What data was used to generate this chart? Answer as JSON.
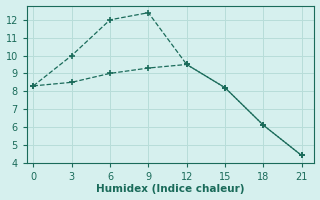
{
  "line1_x": [
    0,
    3,
    6,
    9,
    12,
    15,
    18,
    21
  ],
  "line1_y": [
    8.3,
    10.0,
    12.0,
    12.4,
    9.5,
    8.2,
    6.1,
    4.4
  ],
  "line2_x": [
    0,
    3,
    6,
    9,
    12,
    15,
    18,
    21
  ],
  "line2_y": [
    8.3,
    8.5,
    9.0,
    9.3,
    9.5,
    8.2,
    6.1,
    4.4
  ],
  "line_color": "#1a6b5a",
  "bg_color": "#d6f0ee",
  "grid_color": "#b8ddd9",
  "xlabel": "Humidex (Indice chaleur)",
  "xlim": [
    -0.5,
    22
  ],
  "ylim": [
    4,
    12.8
  ],
  "xticks": [
    0,
    3,
    6,
    9,
    12,
    15,
    18,
    21
  ],
  "yticks": [
    4,
    5,
    6,
    7,
    8,
    9,
    10,
    11,
    12
  ],
  "tick_fontsize": 7,
  "xlabel_fontsize": 7.5
}
